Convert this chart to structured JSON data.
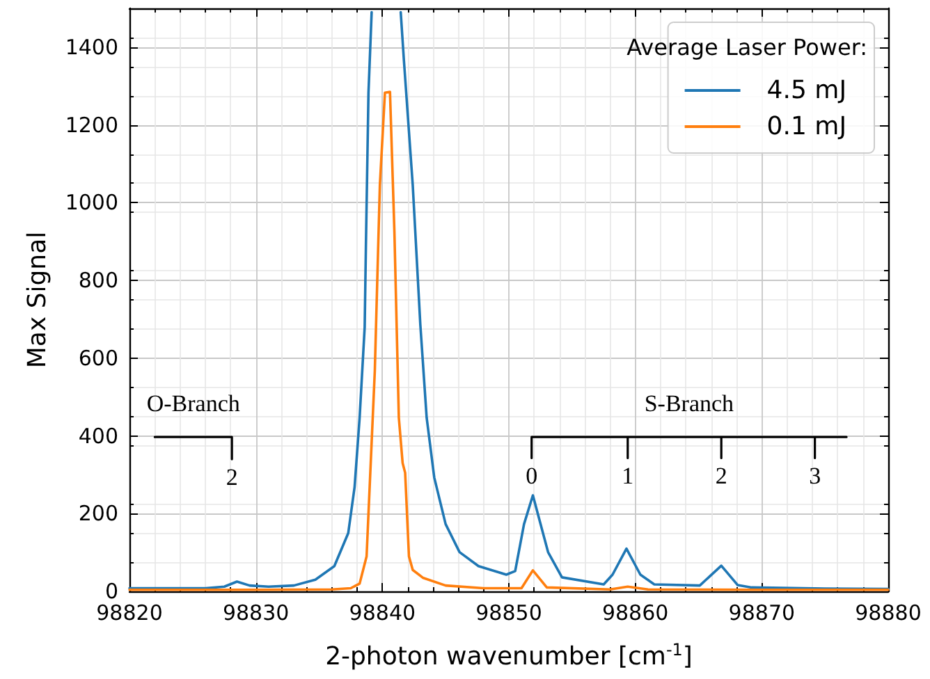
{
  "chart_data": {
    "type": "line",
    "xlabel": "2-photon wavenumber [cm$^{-1}$]",
    "ylabel": "Max Signal",
    "legend_title": "Average Laser Power:",
    "xlim": [
      98820,
      98880
    ],
    "xticks": [
      98820,
      98830,
      98840,
      98850,
      98860,
      98870,
      98880
    ],
    "ylim": [
      0,
      1500
    ],
    "yticks": [
      0,
      200,
      400,
      600,
      800,
      1000,
      1200,
      1400
    ],
    "grid": true,
    "legend": "top right",
    "marker": "none",
    "line_style": "solid",
    "series": [
      {
        "name": "4.5 mJ",
        "color": "#1f77b4",
        "x": [
          98820,
          98823,
          98826,
          98827.5,
          98828.5,
          98829.5,
          98831,
          98833,
          98834.7,
          98836.2,
          98837.3,
          98837.8,
          98838.2,
          98838.6,
          98838.7,
          98838.9,
          98839.15,
          98840.3,
          98841.45,
          98841.7,
          98842.4,
          98843.0,
          98843.5,
          98844.1,
          98845.0,
          98846.1,
          98847.6,
          98849.8,
          98850.5,
          98851.2,
          98851.9,
          98853.1,
          98854.2,
          98857.5,
          98858.2,
          98859.3,
          98860.4,
          98861.5,
          98865.1,
          98866.8,
          98868.1,
          98869.2,
          98875,
          98880
        ],
        "values": [
          8,
          8,
          8,
          12,
          25,
          15,
          12,
          15,
          30,
          65,
          150,
          268,
          447,
          680,
          895,
          1283,
          1490,
          null,
          1490,
          1367,
          1045,
          686,
          447,
          293,
          173,
          101,
          65,
          43,
          52,
          173,
          247,
          101,
          36,
          18,
          43,
          110,
          43,
          18,
          15,
          66,
          16,
          10,
          7,
          6
        ]
      },
      {
        "name": "0.1 mJ",
        "color": "#ff7f0e",
        "x": [
          98820,
          98830,
          98836,
          98837.5,
          98838.2,
          98838.75,
          98839.4,
          98839.8,
          98840.2,
          98840.6,
          98840.95,
          98841.3,
          98841.6,
          98841.8,
          98842.1,
          98842.4,
          98843.2,
          98845,
          98848,
          98851,
          98851.9,
          98853,
          98858,
          98859.4,
          98861,
          98870,
          98880
        ],
        "values": [
          4,
          4,
          5,
          8,
          20,
          90,
          567,
          1045,
          1283,
          1285,
          925,
          447,
          330,
          305,
          90,
          55,
          35,
          15,
          8,
          8,
          54,
          10,
          5,
          12,
          5,
          4,
          4
        ]
      },
      {
        "color": "#000000",
        "x": [
          98822,
          98828.1,
          98828.1
        ],
        "values": [
          397,
          397,
          340
        ]
      },
      {
        "color": "#000000",
        "x": [
          98851.8,
          98851.8,
          98859.4,
          98859.4,
          98859.4,
          98866.8,
          98866.8,
          98866.8,
          98874.2,
          98874.2,
          98874.2,
          98876.7
        ],
        "values": [
          343,
          397,
          397,
          343,
          397,
          397,
          343,
          397,
          397,
          343,
          397,
          397
        ]
      }
    ],
    "annotations": [
      "O-Branch",
      "2",
      "S-Branch",
      "0",
      "1",
      "2",
      "3"
    ]
  }
}
